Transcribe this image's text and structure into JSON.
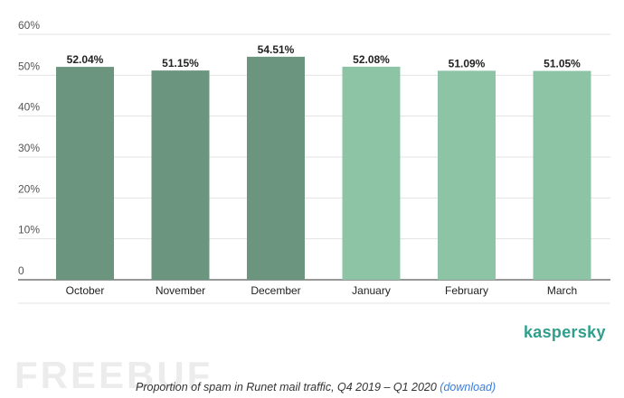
{
  "chart_data": {
    "type": "bar",
    "categories": [
      "October",
      "November",
      "December",
      "January",
      "February",
      "March"
    ],
    "values": [
      52.04,
      51.15,
      54.51,
      52.08,
      51.09,
      51.05
    ],
    "value_labels": [
      "52.04%",
      "51.15%",
      "54.51%",
      "52.08%",
      "51.09%",
      "51.05%"
    ],
    "bar_colors": [
      "#6b957f",
      "#6b957f",
      "#6b957f",
      "#8dc4a6",
      "#8dc4a6",
      "#8dc4a6"
    ],
    "yticks": [
      0,
      10,
      20,
      30,
      40,
      50,
      60
    ],
    "ytick_labels": [
      "0",
      "10%",
      "20%",
      "30%",
      "40%",
      "50%",
      "60%"
    ],
    "ylim": [
      0,
      60
    ],
    "grid": true,
    "legend": "none"
  },
  "brand": "kaspersky",
  "watermark": "FREEBUF",
  "caption": {
    "text": "Proportion of spam in Runet mail traffic, Q4 2019 – Q1 2020 ",
    "link": "(download)"
  },
  "colors": {
    "brand": "#2f9e8a",
    "link": "#3b7dd8"
  }
}
